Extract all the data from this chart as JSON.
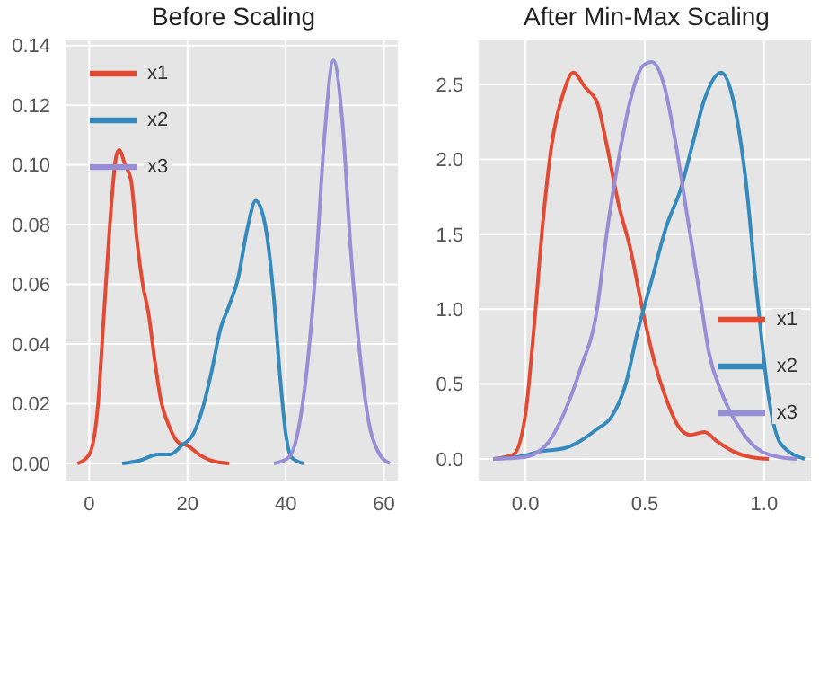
{
  "chart_data": [
    {
      "type": "line",
      "title": "Before Scaling",
      "xlim": [
        -5,
        63
      ],
      "xticks": [
        0,
        20,
        40,
        60
      ],
      "ylim": [
        -0.006,
        0.142
      ],
      "yticks": [
        {
          "value": 0,
          "label": "0.00"
        },
        0.02,
        0.04,
        0.06,
        0.08,
        {
          "value": 0.1,
          "label": "0.10"
        },
        0.12,
        0.14
      ],
      "grid": true,
      "legend": "top left",
      "marker": "none",
      "line_style": "solid",
      "series": [
        {
          "name": "x1",
          "color": "#e24a33",
          "x": [
            -2.4,
            0,
            1.8,
            3,
            4.2,
            5.5,
            6.1,
            7.3,
            8.5,
            9.7,
            10.9,
            12.1,
            13.3,
            14.5,
            16.4,
            18.2,
            20,
            22.4,
            24.8,
            28.5
          ],
          "values": [
            0,
            0.003,
            0.02,
            0.05,
            0.08,
            0.103,
            0.105,
            0.1,
            0.095,
            0.075,
            0.06,
            0.05,
            0.035,
            0.022,
            0.012,
            0.007,
            0.006,
            0.003,
            0.001,
            0
          ]
        },
        {
          "name": "x2",
          "color": "#348abd",
          "x": [
            6.7,
            10.3,
            14,
            16.4,
            18.8,
            21.2,
            23,
            24.8,
            26.7,
            28.5,
            30.3,
            32.1,
            33.9,
            35.8,
            37.6,
            38.8,
            40,
            41.2,
            43.6
          ],
          "values": [
            0,
            0.001,
            0.003,
            0.003,
            0.006,
            0.01,
            0.018,
            0.03,
            0.045,
            0.053,
            0.062,
            0.078,
            0.088,
            0.08,
            0.055,
            0.03,
            0.01,
            0.002,
            0
          ]
        },
        {
          "name": "x3",
          "color": "#988ed5",
          "x": [
            37.6,
            40.6,
            42.4,
            44.2,
            46.1,
            47.9,
            49.7,
            51.5,
            53.3,
            55.2,
            57,
            58.8,
            61.2
          ],
          "values": [
            0,
            0.002,
            0.01,
            0.03,
            0.065,
            0.11,
            0.135,
            0.115,
            0.07,
            0.035,
            0.013,
            0.004,
            0
          ]
        }
      ]
    },
    {
      "type": "line",
      "title": "After Min-Max Scaling",
      "xlim": [
        -0.2,
        1.2
      ],
      "xticks": [
        {
          "value": 0,
          "label": "0.0"
        },
        0.5,
        {
          "value": 1,
          "label": "1.0"
        }
      ],
      "ylim": [
        -0.15,
        2.8
      ],
      "yticks": [
        {
          "value": 0,
          "label": "0.0"
        },
        0.5,
        {
          "value": 1,
          "label": "1.0"
        },
        1.5,
        {
          "value": 2,
          "label": "2.0"
        },
        2.5
      ],
      "grid": true,
      "legend": "right",
      "marker": "none",
      "line_style": "solid",
      "series": [
        {
          "name": "x1",
          "color": "#e24a33",
          "x": [
            -0.135,
            -0.05,
            0,
            0.037,
            0.074,
            0.11,
            0.16,
            0.2,
            0.25,
            0.3,
            0.34,
            0.39,
            0.44,
            0.49,
            0.54,
            0.59,
            0.64,
            0.69,
            0.75,
            0.8,
            0.87,
            0.95,
            1.02
          ],
          "values": [
            0,
            0.03,
            0.3,
            0.9,
            1.6,
            2.1,
            2.45,
            2.58,
            2.48,
            2.38,
            2.1,
            1.7,
            1.4,
            1.0,
            0.65,
            0.4,
            0.22,
            0.16,
            0.18,
            0.12,
            0.05,
            0.01,
            0
          ]
        },
        {
          "name": "x2",
          "color": "#348abd",
          "x": [
            -0.135,
            -0.01,
            0.06,
            0.16,
            0.23,
            0.3,
            0.36,
            0.42,
            0.47,
            0.53,
            0.59,
            0.65,
            0.7,
            0.75,
            0.82,
            0.87,
            0.92,
            0.97,
            1.02,
            1.07,
            1.17
          ],
          "values": [
            0,
            0.02,
            0.05,
            0.07,
            0.12,
            0.2,
            0.28,
            0.5,
            0.85,
            1.2,
            1.55,
            1.8,
            2.1,
            2.4,
            2.58,
            2.4,
            1.9,
            1.1,
            0.4,
            0.1,
            0
          ]
        },
        {
          "name": "x3",
          "color": "#988ed5",
          "x": [
            -0.135,
            -0.01,
            0.09,
            0.16,
            0.23,
            0.3,
            0.34,
            0.39,
            0.44,
            0.49,
            0.53,
            0.58,
            0.63,
            0.68,
            0.73,
            0.77,
            0.82,
            0.9,
            0.97,
            1.07,
            1.14
          ],
          "values": [
            0,
            0.01,
            0.1,
            0.3,
            0.6,
            1.0,
            1.5,
            2.0,
            2.4,
            2.62,
            2.65,
            2.5,
            2.1,
            1.6,
            1.1,
            0.7,
            0.45,
            0.2,
            0.07,
            0.01,
            0
          ]
        }
      ]
    }
  ]
}
